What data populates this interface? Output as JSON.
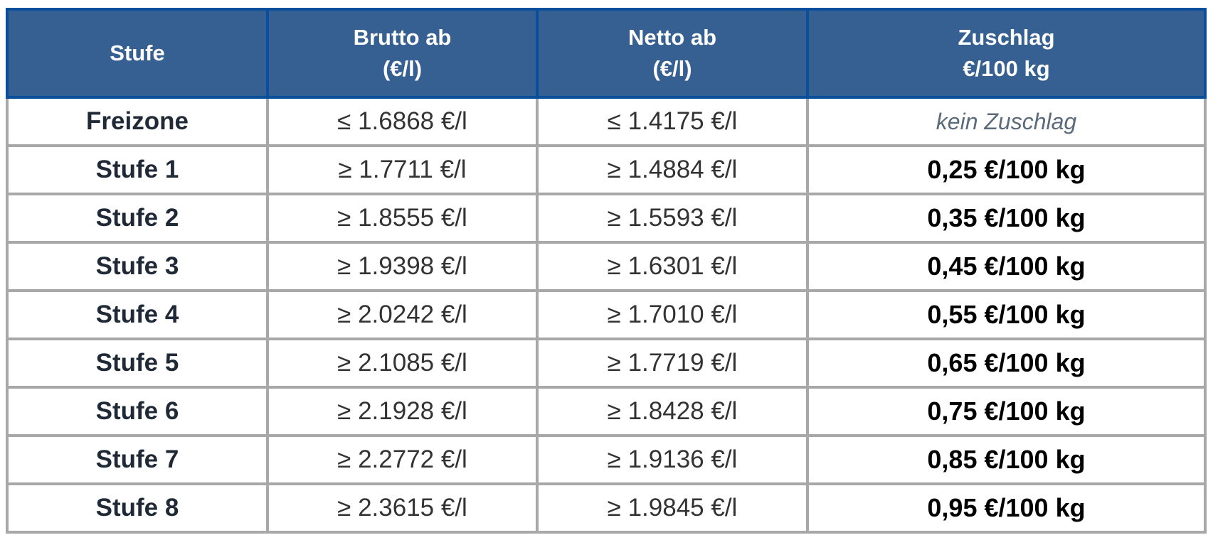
{
  "header": {
    "stufe": "Stufe",
    "brutto": [
      "Brutto ab",
      "(€/l)"
    ],
    "netto": [
      "Netto ab",
      "(€/l)"
    ],
    "zuschlag": [
      "Zuschlag",
      "€/100 kg"
    ]
  },
  "colors": {
    "header_bg": "#366092",
    "header_border": "#0a4f9e",
    "grid": "#a8a8a8"
  },
  "rows": [
    {
      "stufe": "Freizone",
      "brutto": "≤ 1.6868 €/l",
      "netto": "≤ 1.4175 €/l",
      "zuschlag": "kein Zuschlag"
    },
    {
      "stufe": "Stufe 1",
      "brutto": "≥ 1.7711 €/l",
      "netto": "≥ 1.4884 €/l",
      "zuschlag": "0,25 €/100 kg"
    },
    {
      "stufe": "Stufe 2",
      "brutto": "≥ 1.8555 €/l",
      "netto": "≥ 1.5593 €/l",
      "zuschlag": "0,35 €/100 kg"
    },
    {
      "stufe": "Stufe 3",
      "brutto": "≥ 1.9398 €/l",
      "netto": "≥ 1.6301 €/l",
      "zuschlag": "0,45 €/100 kg"
    },
    {
      "stufe": "Stufe 4",
      "brutto": "≥ 2.0242 €/l",
      "netto": "≥ 1.7010 €/l",
      "zuschlag": "0,55 €/100 kg"
    },
    {
      "stufe": "Stufe 5",
      "brutto": "≥ 2.1085 €/l",
      "netto": "≥ 1.7719 €/l",
      "zuschlag": "0,65 €/100 kg"
    },
    {
      "stufe": "Stufe 6",
      "brutto": "≥ 2.1928 €/l",
      "netto": "≥ 1.8428 €/l",
      "zuschlag": "0,75 €/100 kg"
    },
    {
      "stufe": "Stufe 7",
      "brutto": "≥ 2.2772 €/l",
      "netto": "≥ 1.9136 €/l",
      "zuschlag": "0,85 €/100 kg"
    },
    {
      "stufe": "Stufe 8",
      "brutto": "≥ 2.3615 €/l",
      "netto": "≥ 1.9845 €/l",
      "zuschlag": "0,95 €/100 kg"
    }
  ]
}
